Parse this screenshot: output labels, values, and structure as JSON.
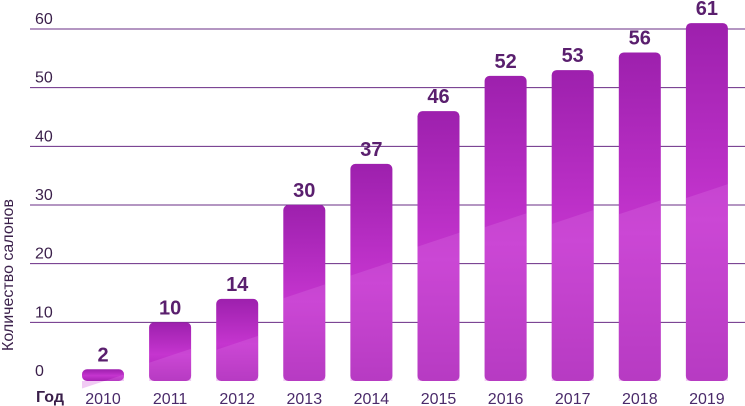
{
  "chart_data": {
    "type": "bar",
    "title": "",
    "xlabel": "Год",
    "ylabel": "Количество салонов",
    "categories": [
      "2010",
      "2011",
      "2012",
      "2013",
      "2014",
      "2015",
      "2016",
      "2017",
      "2018",
      "2019"
    ],
    "values": [
      2,
      10,
      14,
      30,
      37,
      46,
      52,
      53,
      56,
      61
    ],
    "ylim": [
      0,
      60
    ],
    "yticks": [
      0,
      10,
      20,
      30,
      40,
      50,
      60
    ],
    "grid": true,
    "bar_color": "#c235cc",
    "bar_color_top": "#9c22ab",
    "value_label_color": "#5a1f6e"
  }
}
